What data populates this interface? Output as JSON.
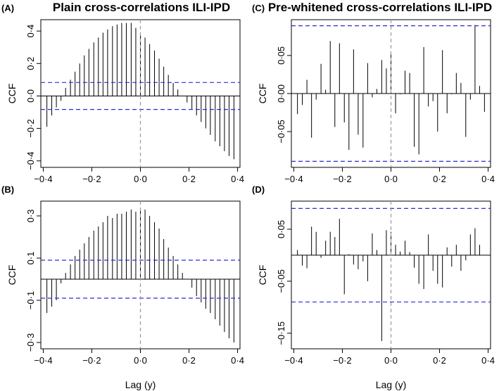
{
  "titles": {
    "left": "Plain cross-correlations ILI-IPD",
    "right": "Pre-whitened cross-correlations ILI-IPD"
  },
  "chart_data": [
    {
      "panel": "(A)",
      "type": "bar",
      "ylabel": "CCF",
      "xlabel": "",
      "xlim": [
        -0.41,
        0.41
      ],
      "ylim": [
        -0.44,
        0.47
      ],
      "yticks": [
        -0.4,
        -0.2,
        0.0,
        0.2,
        0.4
      ],
      "ytick_labels": [
        "−0·4",
        "−0·2",
        "0·0",
        "0·2",
        "0·4"
      ],
      "xticks": [
        -0.4,
        -0.2,
        0.0,
        0.2,
        0.4
      ],
      "xtick_labels": [
        "−0·4",
        "−0·2",
        "0·0",
        "0·2",
        "0·4"
      ],
      "conf_band": 0.083,
      "lags": [
        -0.385,
        -0.365,
        -0.346,
        -0.327,
        -0.308,
        -0.288,
        -0.269,
        -0.25,
        -0.231,
        -0.212,
        -0.192,
        -0.173,
        -0.154,
        -0.135,
        -0.115,
        -0.096,
        -0.077,
        -0.058,
        -0.038,
        -0.019,
        0.0,
        0.019,
        0.038,
        0.058,
        0.077,
        0.096,
        0.115,
        0.135,
        0.154,
        0.173,
        0.192,
        0.212,
        0.231,
        0.25,
        0.269,
        0.288,
        0.308,
        0.327,
        0.346,
        0.365,
        0.385
      ],
      "values": [
        -0.19,
        -0.12,
        -0.07,
        -0.03,
        0.05,
        0.1,
        0.15,
        0.2,
        0.25,
        0.29,
        0.33,
        0.36,
        0.39,
        0.41,
        0.43,
        0.44,
        0.45,
        0.45,
        0.45,
        0.42,
        0.39,
        0.36,
        0.32,
        0.28,
        0.23,
        0.18,
        0.13,
        0.08,
        0.04,
        0.0,
        -0.04,
        -0.08,
        -0.12,
        -0.16,
        -0.2,
        -0.24,
        -0.28,
        -0.31,
        -0.34,
        -0.37,
        -0.39
      ]
    },
    {
      "panel": "(B)",
      "type": "bar",
      "ylabel": "CCF",
      "xlabel": "Lag (y)",
      "xlim": [
        -0.41,
        0.41
      ],
      "ylim": [
        -0.33,
        0.37
      ],
      "yticks": [
        -0.3,
        -0.1,
        0.1,
        0.3
      ],
      "ytick_labels": [
        "−0·3",
        "−0·1",
        "0·1",
        "0·3"
      ],
      "xticks": [
        -0.4,
        -0.2,
        0.0,
        0.2,
        0.4
      ],
      "xtick_labels": [
        "−0·4",
        "−0·2",
        "0·0",
        "0·2",
        "0·4"
      ],
      "conf_band": 0.09,
      "lags": [
        -0.385,
        -0.365,
        -0.346,
        -0.327,
        -0.308,
        -0.288,
        -0.269,
        -0.25,
        -0.231,
        -0.212,
        -0.192,
        -0.173,
        -0.154,
        -0.135,
        -0.115,
        -0.096,
        -0.077,
        -0.058,
        -0.038,
        -0.019,
        0.0,
        0.019,
        0.038,
        0.058,
        0.077,
        0.096,
        0.115,
        0.135,
        0.154,
        0.173,
        0.192,
        0.212,
        0.231,
        0.25,
        0.269,
        0.288,
        0.308,
        0.327,
        0.346,
        0.365,
        0.385
      ],
      "values": [
        -0.16,
        -0.13,
        -0.1,
        -0.02,
        0.03,
        0.07,
        0.11,
        0.14,
        0.17,
        0.2,
        0.23,
        0.25,
        0.27,
        0.3,
        0.29,
        0.31,
        0.31,
        0.32,
        0.33,
        0.32,
        0.33,
        0.33,
        0.3,
        0.27,
        0.24,
        0.19,
        0.15,
        0.11,
        0.07,
        0.03,
        0.0,
        -0.04,
        -0.08,
        -0.11,
        -0.14,
        -0.16,
        -0.19,
        -0.22,
        -0.25,
        -0.28,
        -0.3
      ]
    },
    {
      "panel": "(C)",
      "type": "bar",
      "ylabel": "CCF",
      "xlabel": "",
      "xlim": [
        -0.41,
        0.41
      ],
      "ylim": [
        -0.097,
        0.097
      ],
      "yticks": [
        -0.05,
        0.0,
        0.05
      ],
      "ytick_labels": [
        "−0·05",
        "0·00",
        "0·05"
      ],
      "xticks": [
        -0.4,
        -0.2,
        0.0,
        0.2,
        0.4
      ],
      "xtick_labels": [
        "−0·4",
        "−0·2",
        "0·0",
        "0·2",
        "0·4"
      ],
      "conf_band": 0.089,
      "lags": [
        -0.385,
        -0.365,
        -0.346,
        -0.327,
        -0.308,
        -0.288,
        -0.269,
        -0.25,
        -0.231,
        -0.212,
        -0.192,
        -0.173,
        -0.154,
        -0.135,
        -0.115,
        -0.096,
        -0.077,
        -0.058,
        -0.038,
        -0.019,
        0.0,
        0.019,
        0.038,
        0.058,
        0.077,
        0.096,
        0.115,
        0.135,
        0.154,
        0.173,
        0.192,
        0.212,
        0.231,
        0.25,
        0.269,
        0.288,
        0.308,
        0.327,
        0.346,
        0.365,
        0.385
      ],
      "values": [
        -0.027,
        -0.015,
        0.018,
        -0.058,
        -0.008,
        0.039,
        0.005,
        0.069,
        -0.044,
        0.066,
        -0.038,
        -0.074,
        0.058,
        -0.054,
        -0.071,
        0.04,
        -0.005,
        0.006,
        0.044,
        0.033,
        0.055,
        -0.026,
        -0.001,
        0.03,
        0.027,
        -0.07,
        -0.08,
        0.061,
        -0.017,
        -0.01,
        -0.05,
        0.057,
        -0.026,
        -0.001,
        0.027,
        0.014,
        -0.057,
        -0.008,
        0.09,
        0.01,
        -0.024
      ]
    },
    {
      "panel": "(D)",
      "type": "bar",
      "ylabel": "CCF",
      "xlabel": "Lag (y)",
      "xlim": [
        -0.41,
        0.41
      ],
      "ylim": [
        -0.18,
        0.104
      ],
      "yticks": [
        -0.15,
        -0.05,
        0.05
      ],
      "ytick_labels": [
        "−0·15",
        "−0·05",
        "0·05"
      ],
      "xticks": [
        -0.4,
        -0.2,
        0.0,
        0.2,
        0.4
      ],
      "xtick_labels": [
        "−0·4",
        "−0·2",
        "0·0",
        "0·2",
        "0·4"
      ],
      "conf_band": 0.09,
      "lags": [
        -0.385,
        -0.365,
        -0.346,
        -0.327,
        -0.308,
        -0.288,
        -0.269,
        -0.25,
        -0.231,
        -0.212,
        -0.192,
        -0.173,
        -0.154,
        -0.135,
        -0.115,
        -0.096,
        -0.077,
        -0.058,
        -0.038,
        -0.019,
        0.0,
        0.019,
        0.038,
        0.058,
        0.077,
        0.096,
        0.115,
        0.135,
        0.154,
        0.173,
        0.192,
        0.212,
        0.231,
        0.25,
        0.269,
        0.288,
        0.308,
        0.327,
        0.346,
        0.365,
        0.385
      ],
      "values": [
        0.01,
        -0.02,
        -0.025,
        0.055,
        0.045,
        -0.005,
        0.028,
        0.045,
        0.035,
        0.07,
        -0.075,
        0.002,
        -0.018,
        -0.027,
        -0.012,
        -0.05,
        0.042,
        0.01,
        -0.165,
        0.048,
        0.045,
        0.02,
        0.007,
        0.028,
        0.006,
        -0.024,
        -0.055,
        -0.065,
        0.04,
        -0.03,
        -0.055,
        -0.062,
        0.015,
        -0.022,
        0.02,
        -0.03,
        -0.01,
        0.04,
        0.052,
        0.02,
        0.0
      ]
    }
  ]
}
